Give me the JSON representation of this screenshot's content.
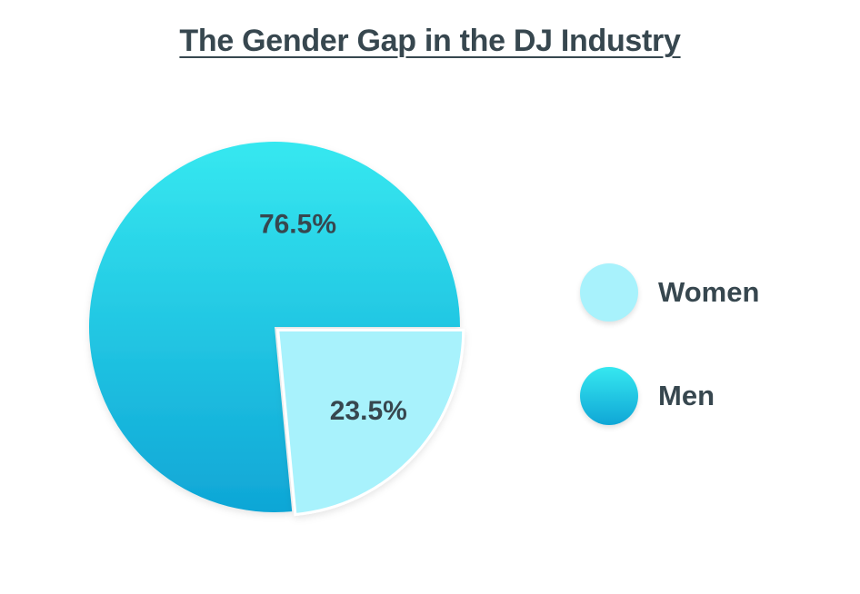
{
  "title": "The Gender Gap in the DJ Industry",
  "chart_data": {
    "type": "pie",
    "title": "The Gender Gap in the DJ Industry",
    "slices": [
      {
        "name": "Women",
        "value": 23.5,
        "label": "23.5%",
        "color": "#a8f2fc",
        "exploded": true
      },
      {
        "name": "Men",
        "value": 76.5,
        "label": "76.5%",
        "color_top": "#36e8f0",
        "color_bottom": "#0fa6d6"
      }
    ],
    "legend": {
      "placement": "right",
      "entries": [
        {
          "name": "Women",
          "color": "#a8f2fc"
        },
        {
          "name": "Men",
          "color_top": "#36e8f0",
          "color_bottom": "#0fa6d6"
        }
      ]
    }
  }
}
